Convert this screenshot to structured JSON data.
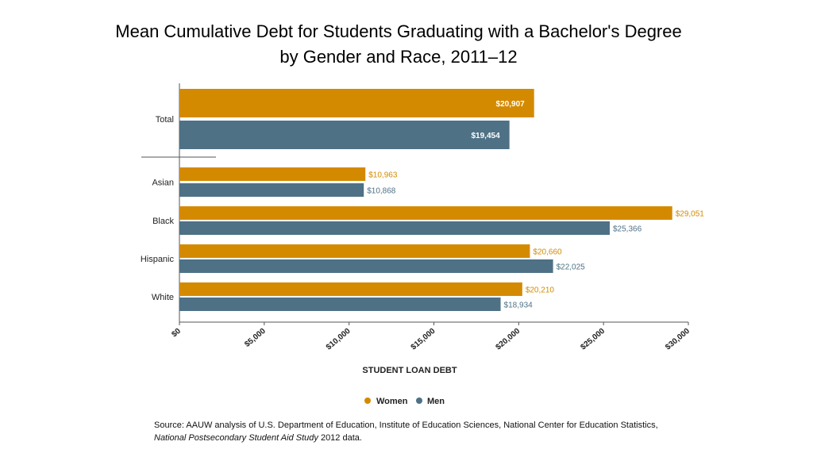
{
  "title_line1": "Mean Cumulative Debt for Students Graduating with a Bachelor's Degree",
  "title_line2": "by Gender and Race, 2011–12",
  "source": {
    "prefix": "Source: AAUW analysis of U.S. Department of Education, Institute of Education Sciences, National Center for Education Statistics, ",
    "italic": "National Postsecondary Student Aid Study",
    "suffix": " 2012 data."
  },
  "chart_data": {
    "type": "bar",
    "orientation": "horizontal",
    "categories": [
      "Total",
      "Asian",
      "Black",
      "Hispanic",
      "White"
    ],
    "series": [
      {
        "name": "Women",
        "color": "#D48A00",
        "values": [
          20907,
          10963,
          29051,
          20660,
          20210
        ],
        "labels": [
          "$20,907",
          "$10,963",
          "$29,051",
          "$20,660",
          "$20,210"
        ]
      },
      {
        "name": "Men",
        "color": "#4E7186",
        "values": [
          19454,
          10868,
          25366,
          22025,
          18934
        ],
        "labels": [
          "$19,454",
          "$10,868",
          "$25,366",
          "$22,025",
          "$18,934"
        ]
      }
    ],
    "xlabel": "STUDENT LOAN DEBT",
    "ylabel": "",
    "xlim": [
      0,
      30000
    ],
    "xticks": [
      0,
      5000,
      10000,
      15000,
      20000,
      25000,
      30000
    ],
    "xtick_labels": [
      "$0",
      "$5,000",
      "$10,000",
      "$15,000",
      "$20,000",
      "$25,000",
      "$30,000"
    ],
    "grid": false,
    "legend_position": "bottom-center",
    "total_labels_inside_bar": true
  }
}
